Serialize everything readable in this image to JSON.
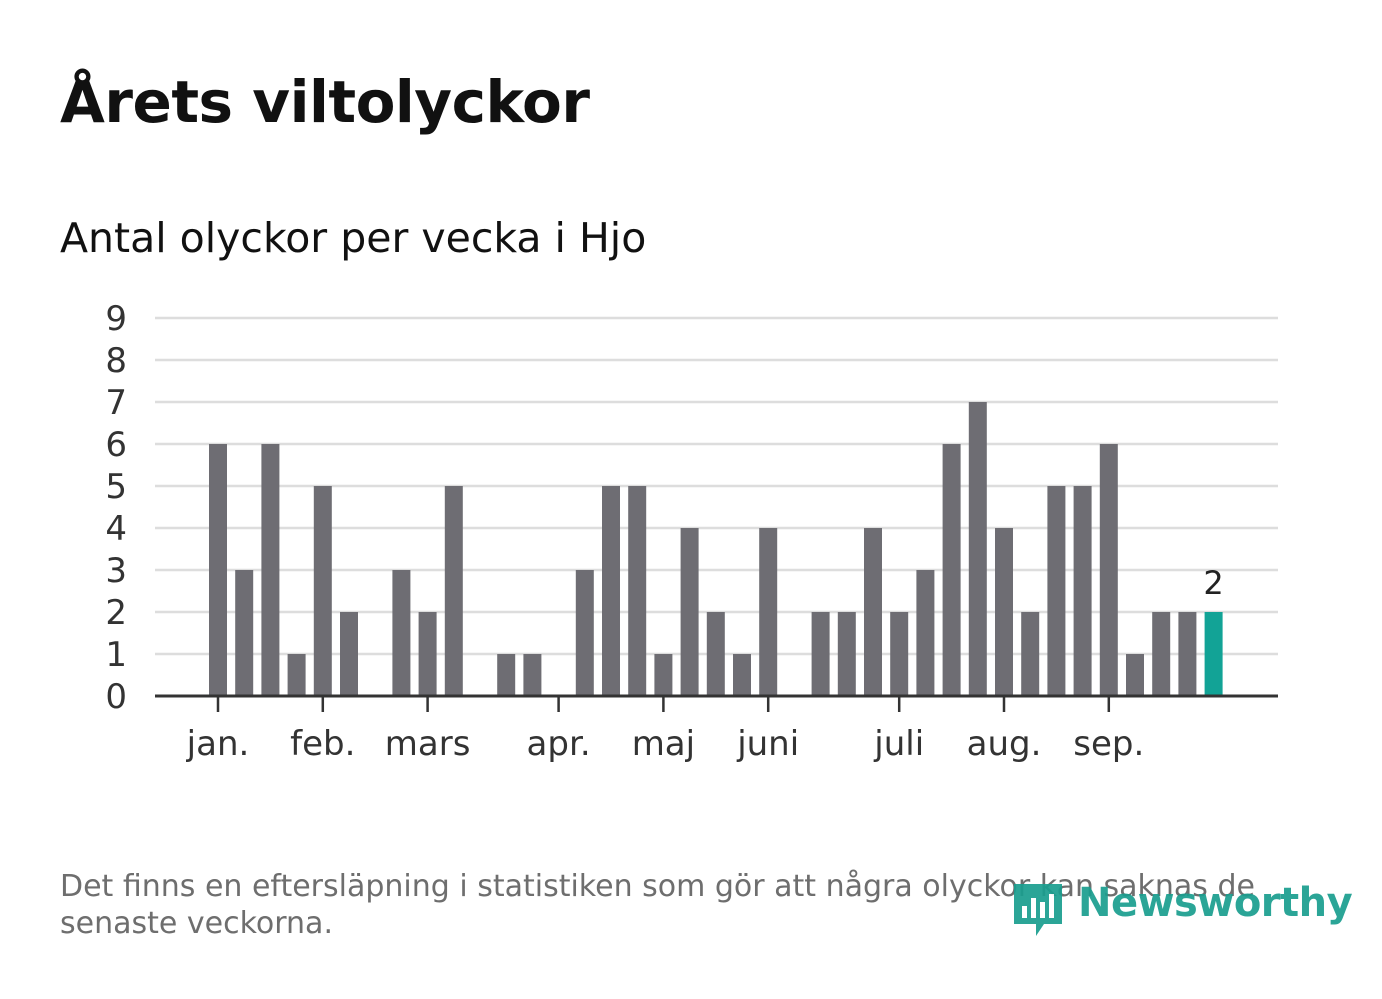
{
  "title": "Årets viltolyckor",
  "subtitle": "Antal olyckor per vecka i Hjo",
  "footnote": "Det finns en eftersläpning i statistiken som gör att några olyckor kan saknas de senaste veckorna.",
  "brand": {
    "name": "Newsworthy",
    "color": "#1a9e8f"
  },
  "colors": {
    "bar": "#6e6d73",
    "highlight": "#12a396",
    "grid": "#dddddd",
    "axis": "#333333",
    "text": "#333333"
  },
  "chart_data": {
    "type": "bar",
    "xlabel": "",
    "ylabel": "",
    "ylim": [
      0,
      9
    ],
    "yticks": [
      0,
      1,
      2,
      3,
      4,
      5,
      6,
      7,
      8,
      9
    ],
    "grid": true,
    "weeks": [
      1,
      2,
      3,
      4,
      5,
      6,
      7,
      8,
      9,
      10,
      11,
      12,
      13,
      14,
      15,
      16,
      17,
      18,
      19,
      20,
      21,
      22,
      23,
      24,
      25,
      26,
      27,
      28,
      29,
      30,
      31,
      32,
      33,
      34,
      35,
      36,
      37,
      38,
      39,
      40,
      41,
      42
    ],
    "values": [
      0,
      0,
      6,
      3,
      6,
      1,
      5,
      2,
      0,
      3,
      2,
      5,
      0,
      1,
      1,
      0,
      3,
      5,
      5,
      1,
      4,
      2,
      1,
      4,
      0,
      2,
      2,
      4,
      2,
      3,
      6,
      7,
      4,
      2,
      5,
      5,
      6,
      1,
      2,
      2,
      2,
      0
    ],
    "highlight_index": 40,
    "highlight_label": "2",
    "months": [
      {
        "label": "jan.",
        "week": 3
      },
      {
        "label": "feb.",
        "week": 7
      },
      {
        "label": "mars",
        "week": 11
      },
      {
        "label": "apr.",
        "week": 16
      },
      {
        "label": "maj",
        "week": 20
      },
      {
        "label": "juni",
        "week": 24
      },
      {
        "label": "juli",
        "week": 29
      },
      {
        "label": "aug.",
        "week": 33
      },
      {
        "label": "sep.",
        "week": 37
      }
    ]
  }
}
